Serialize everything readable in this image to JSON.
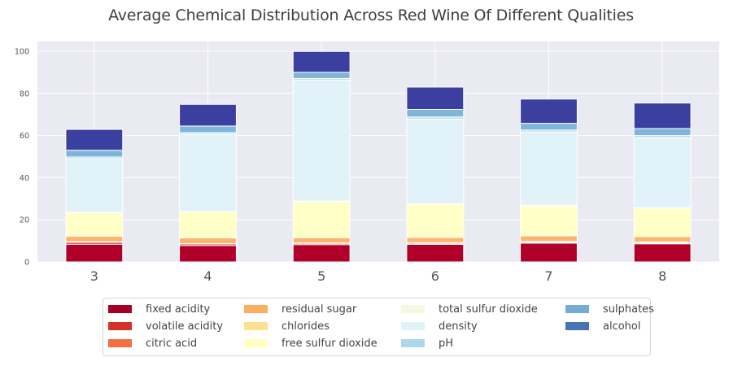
{
  "chart_data": {
    "type": "bar",
    "stacked": true,
    "title": "Average Chemical Distribution Across Red Wine Of Different Qualities",
    "xlabel": "",
    "ylabel": "",
    "categories": [
      "3",
      "4",
      "5",
      "6",
      "7",
      "8"
    ],
    "ylim": [
      0,
      105
    ],
    "yticks": [
      0,
      20,
      40,
      60,
      80,
      100
    ],
    "grid": true,
    "legend_position": "bottom-center",
    "series": [
      {
        "name": "fixed acidity",
        "color": "#b0002a",
        "legend_color": "#a50026",
        "values": [
          8.4,
          7.8,
          8.2,
          8.3,
          8.9,
          8.6
        ]
      },
      {
        "name": "volatile acidity",
        "color": "#d73027",
        "legend_color": "#d73027",
        "values": [
          0.9,
          0.7,
          0.6,
          0.5,
          0.4,
          0.4
        ]
      },
      {
        "name": "citric acid",
        "color": "#f46d43",
        "legend_color": "#f46d43",
        "values": [
          0.3,
          0.2,
          0.2,
          0.3,
          0.4,
          0.4
        ]
      },
      {
        "name": "residual sugar",
        "color": "#fdb56a",
        "legend_color": "#fdae61",
        "values": [
          2.6,
          2.7,
          2.5,
          2.5,
          2.7,
          2.6
        ]
      },
      {
        "name": "chlorides",
        "color": "#fee090",
        "legend_color": "#fee090",
        "values": [
          0.1,
          0.1,
          0.1,
          0.1,
          0.1,
          0.1
        ]
      },
      {
        "name": "free sulfur dioxide",
        "color": "#ffffc6",
        "legend_color": "#ffffbf",
        "values": [
          11.0,
          12.3,
          17.0,
          15.7,
          14.2,
          13.4
        ]
      },
      {
        "name": "total sulfur dioxide",
        "color": "#f1fae0",
        "legend_color": "#f3fadf",
        "values": [
          0.2,
          0.2,
          0.3,
          0.2,
          0.2,
          0.2
        ]
      },
      {
        "name": "density",
        "color": "#e1f3f8",
        "legend_color": "#e0f3f8",
        "values": [
          25.5,
          36.6,
          57.4,
          40.2,
          34.8,
          33.2
        ]
      },
      {
        "name": "pH",
        "color": "#b6dcec",
        "legend_color": "#abd9e9",
        "values": [
          0.8,
          0.8,
          0.8,
          1.0,
          0.9,
          1.1
        ]
      },
      {
        "name": "sulphates",
        "color": "#7fb5d8",
        "legend_color": "#74add1",
        "values": [
          3.2,
          3.1,
          2.9,
          3.6,
          3.2,
          3.3
        ]
      },
      {
        "name": "alcohol",
        "color": "#3a3fa0",
        "legend_color": "#4575b4",
        "values": [
          9.9,
          10.3,
          9.9,
          10.6,
          11.5,
          12.1
        ]
      }
    ]
  },
  "colors": {
    "plot_background": "#eaeaf2",
    "grid": "#ffffff",
    "text": "#555555"
  }
}
